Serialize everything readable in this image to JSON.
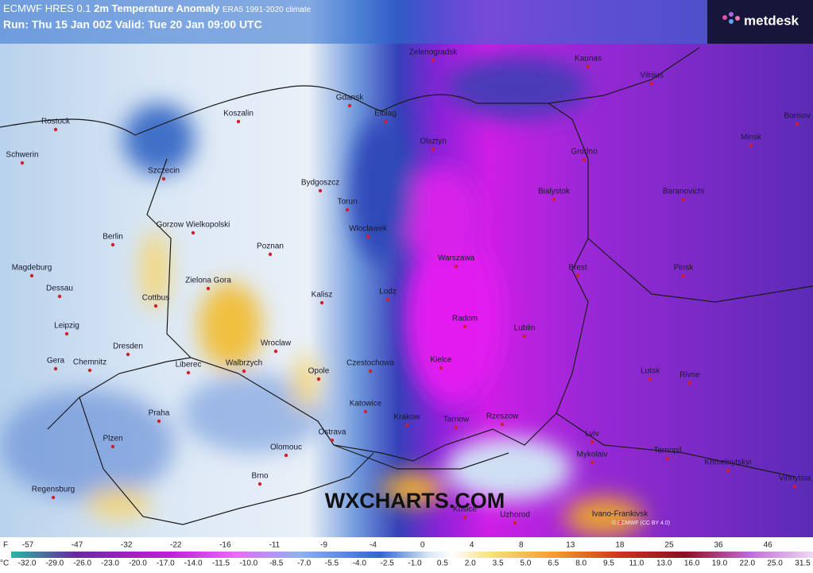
{
  "header": {
    "title_prefix": "ECMWF HRES 0.1",
    "title": "2m Temperature Anomaly",
    "title_note": "ERA5 1991-2020 climate",
    "run": "Run: Thu 15 Jan 00Z Valid: Tue 20 Jan 09:00 UTC"
  },
  "logo": "metdesk",
  "watermark": "WXCHARTS.COM",
  "copyright": "© ECMWF (CC BY 4.0)",
  "cities": [
    "Zelenogradsk",
    "Kaunas",
    "Vilnius",
    "Rostock",
    "Koszalin",
    "Gdansk",
    "Elblag",
    "Borisov",
    "Olsztyn",
    "Minsk",
    "Schwerin",
    "Grodno",
    "Szczecin",
    "Bydgoszcz",
    "Bialystok",
    "Baranovichi",
    "Torun",
    "Gorzow Wielkopolski",
    "Wloclawek",
    "Berlin",
    "Poznan",
    "Warszawa",
    "Magdeburg",
    "Brest",
    "Pinsk",
    "Dessau",
    "Zielona Gora",
    "Lodz",
    "Kalisz",
    "Cottbus",
    "Radom",
    "Lublin",
    "Leipzig",
    "Wroclaw",
    "Dresden",
    "Gera",
    "Chemnitz",
    "Liberec",
    "Walbrzych",
    "Czestochowa",
    "Kielce",
    "Opole",
    "Lutsk",
    "Rivne",
    "Katowice",
    "Praha",
    "Krakow",
    "Tarnow",
    "Rzeszow",
    "Lviv",
    "Plzen",
    "Ostrava",
    "Olomouc",
    "Mykolaiv",
    "Ternopil",
    "Khmelnytskyi",
    "Brno",
    "Regensburg",
    "Vinnytsia",
    "Kosice",
    "Uzhorod",
    "Ivano-Frankivsk"
  ],
  "legend": {
    "f_unit": "F",
    "f_ticks": [
      "-57",
      "-47",
      "-32",
      "-22",
      "-16",
      "-11",
      "-9",
      "-4",
      "0",
      "4",
      "8",
      "13",
      "18",
      "25",
      "36",
      "46"
    ],
    "c_unit": "°C",
    "c_ticks": [
      "-32.0",
      "-29.0",
      "-26.0",
      "-23.0",
      "-20.0",
      "-17.0",
      "-14.0",
      "-11.5",
      "-10.0",
      "-8.5",
      "-7.0",
      "-5.5",
      "-4.0",
      "-2.5",
      "-1.0",
      "0.5",
      "2.0",
      "3.5",
      "5.0",
      "6.5",
      "8.0",
      "9.5",
      "11.0",
      "13.0",
      "16.0",
      "19.0",
      "22.0",
      "25.0",
      "31.5"
    ]
  }
}
